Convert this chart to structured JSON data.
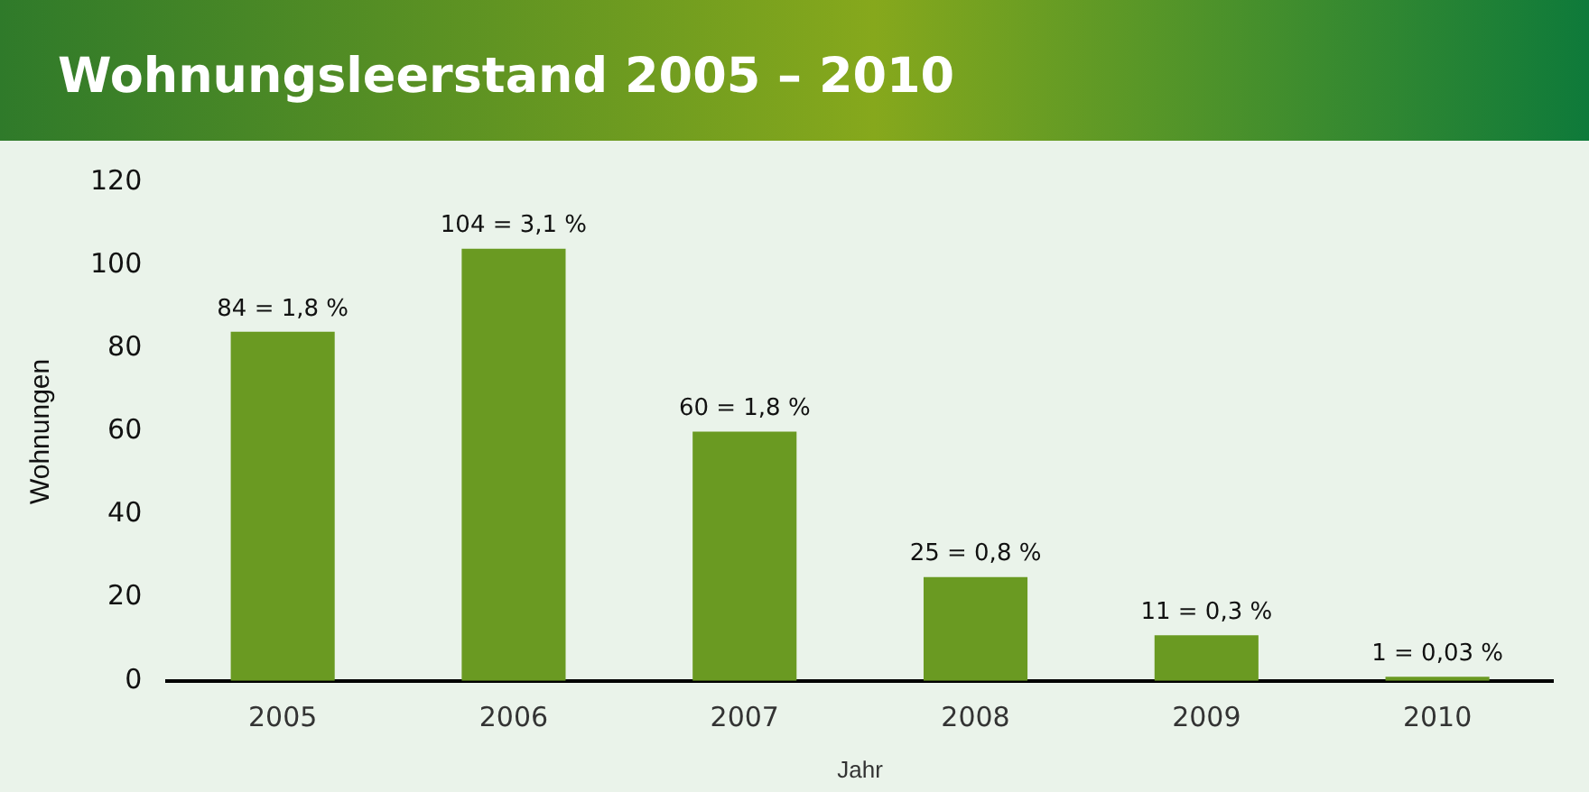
{
  "chart_data": {
    "type": "bar",
    "title": "Wohnungsleerstand 2005 – 2010",
    "xlabel": "Jahr",
    "ylabel": "Wohnungen",
    "categories": [
      "2005",
      "2006",
      "2007",
      "2008",
      "2009",
      "2010"
    ],
    "values": [
      84,
      104,
      60,
      25,
      11,
      1
    ],
    "value_labels": [
      "84 = 1,8 %",
      "104 = 3,1 %",
      "60 = 1,8 %",
      "25 = 0,8 %",
      "11 = 0,3 %",
      "1 = 0,03 %"
    ],
    "color": "#6a9a22",
    "ylim": [
      0,
      120
    ],
    "yticks": [
      0,
      20,
      40,
      60,
      80,
      100,
      120
    ],
    "grid": false,
    "legend": false
  }
}
